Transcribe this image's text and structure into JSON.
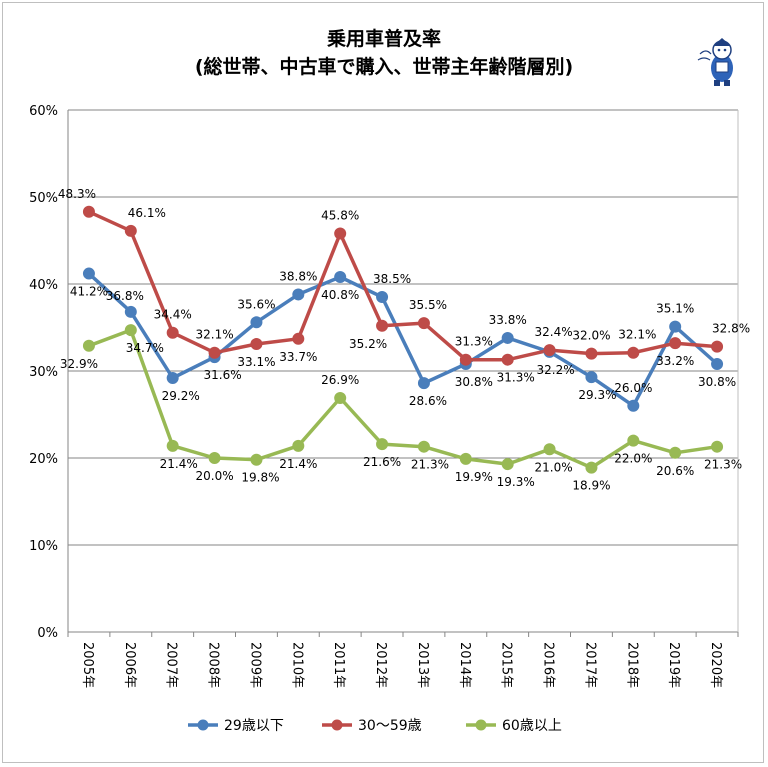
{
  "chart_data": {
    "type": "line",
    "title": "乗用車普及率",
    "subtitle": "(総世帯、中古車で購入、世帯主年齢階層別)",
    "xlabel": "",
    "ylabel": "",
    "ylim": [
      0,
      60
    ],
    "y_ticks": [
      "0%",
      "10%",
      "20%",
      "30%",
      "40%",
      "50%",
      "60%"
    ],
    "grid": true,
    "legend_position": "bottom",
    "categories": [
      "2005年",
      "2006年",
      "2007年",
      "2008年",
      "2009年",
      "2010年",
      "2011年",
      "2012年",
      "2013年",
      "2014年",
      "2015年",
      "2016年",
      "2017年",
      "2018年",
      "2019年",
      "2020年"
    ],
    "series": [
      {
        "name": "29歳以下",
        "color": "#4a7ebb",
        "values": [
          41.2,
          36.8,
          29.2,
          31.6,
          35.6,
          38.8,
          40.8,
          38.5,
          28.6,
          30.8,
          33.8,
          32.2,
          29.3,
          26.0,
          35.1,
          30.8
        ],
        "labels": [
          "41.2%",
          "36.8%",
          "29.2%",
          "31.6%",
          "35.6%",
          "38.8%",
          "40.8%",
          "38.5%",
          "28.6%",
          "30.8%",
          "33.8%",
          "32.2%",
          "29.3%",
          "26.0%",
          "35.1%",
          "30.8%"
        ]
      },
      {
        "name": "30～59歳",
        "color": "#be4b48",
        "values": [
          48.3,
          46.1,
          34.4,
          32.1,
          33.1,
          33.7,
          45.8,
          35.2,
          35.5,
          31.3,
          31.3,
          32.4,
          32.0,
          32.1,
          33.2,
          32.8
        ],
        "labels": [
          "48.3%",
          "46.1%",
          "34.4%",
          "32.1%",
          "33.1%",
          "33.7%",
          "45.8%",
          "35.2%",
          "35.5%",
          "31.3%",
          "31.3%",
          "32.4%",
          "32.0%",
          "32.1%",
          "33.2%",
          "32.8%"
        ]
      },
      {
        "name": "60歳以上",
        "color": "#98b954",
        "values": [
          32.9,
          34.7,
          21.4,
          20.0,
          19.8,
          21.4,
          26.9,
          21.6,
          21.3,
          19.9,
          19.3,
          21.0,
          18.9,
          22.0,
          20.6,
          21.3
        ],
        "labels": [
          "32.9%",
          "34.7%",
          "21.4%",
          "20.0%",
          "19.8%",
          "21.4%",
          "26.9%",
          "21.6%",
          "21.3%",
          "19.9%",
          "19.3%",
          "21.0%",
          "18.9%",
          "22.0%",
          "20.6%",
          "21.3%"
        ]
      }
    ]
  }
}
